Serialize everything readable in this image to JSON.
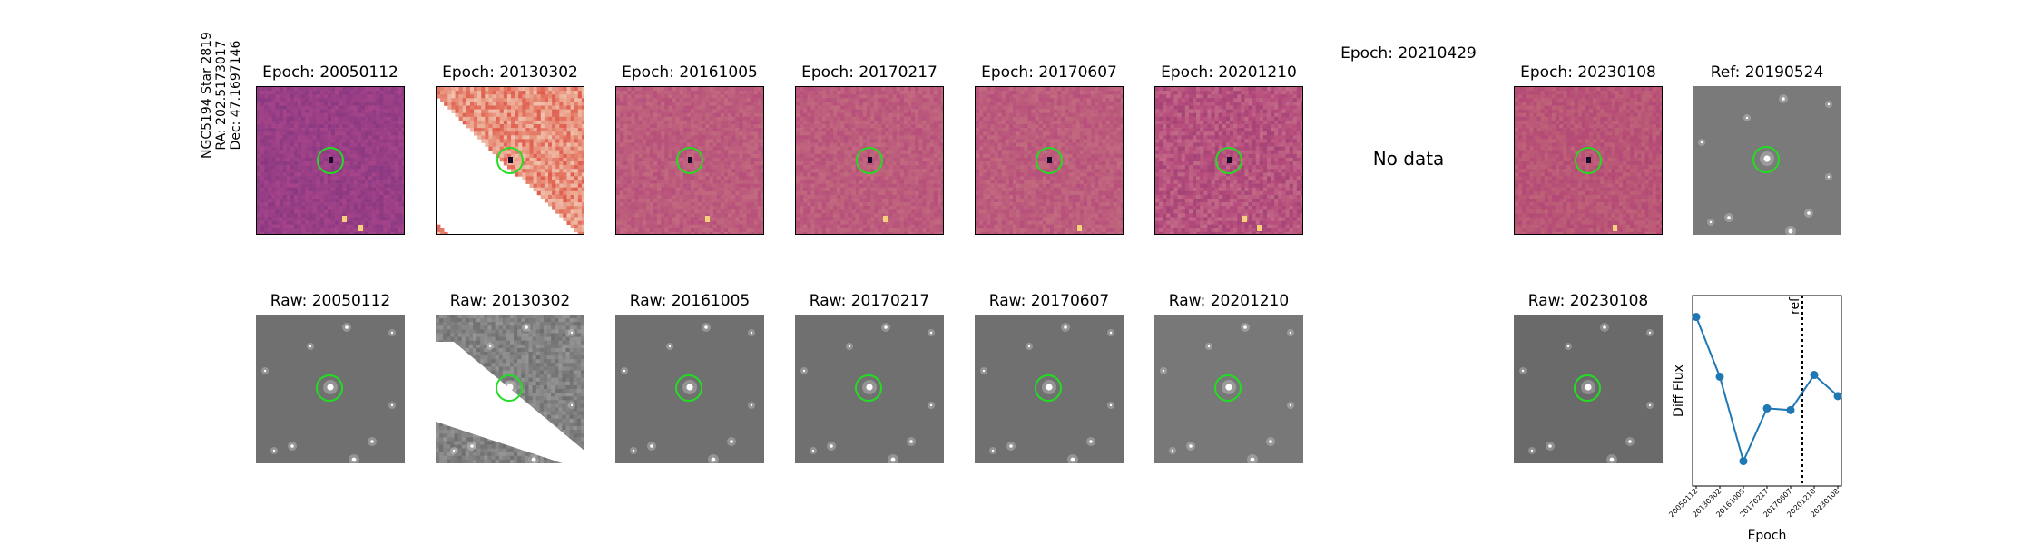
{
  "star_label": {
    "line1": "NGC5194 Star 2819",
    "line2": "RA: 202.5173017",
    "line3": "Dec: 47.1697146"
  },
  "diff_titles": [
    "Epoch: 20050112",
    "Epoch: 20130302",
    "Epoch: 20161005",
    "Epoch: 20170217",
    "Epoch: 20170607",
    "Epoch: 20201210",
    "Epoch: 20210429",
    "Epoch: 20230108"
  ],
  "ref_title": "Ref: 20190524",
  "no_data_text": "No data",
  "raw_titles": [
    "Raw: 20050112",
    "Raw: 20130302",
    "Raw: 20161005",
    "Raw: 20170217",
    "Raw: 20170607",
    "Raw: 20201210",
    "Raw: 20230108"
  ],
  "colors": {
    "diff_map": "#b84a7a",
    "raw_map": "#6e6e6e",
    "aperture": "#22dd22",
    "series": "#1f77b4"
  },
  "chart_data": {
    "type": "line",
    "xlabel": "Epoch",
    "ylabel": "Diff Flux",
    "categories": [
      "20050112",
      "20130302",
      "20161005",
      "20170217",
      "20170607",
      "20201210",
      "20230108"
    ],
    "values": [
      0.92,
      0.58,
      0.1,
      0.4,
      0.39,
      0.59,
      0.47
    ],
    "ylim": [
      0,
      1
    ],
    "ref_marker": {
      "label": "ref",
      "position_between": [
        "20170607",
        "20201210"
      ]
    },
    "grid": false,
    "y_ticks_shown": false
  }
}
